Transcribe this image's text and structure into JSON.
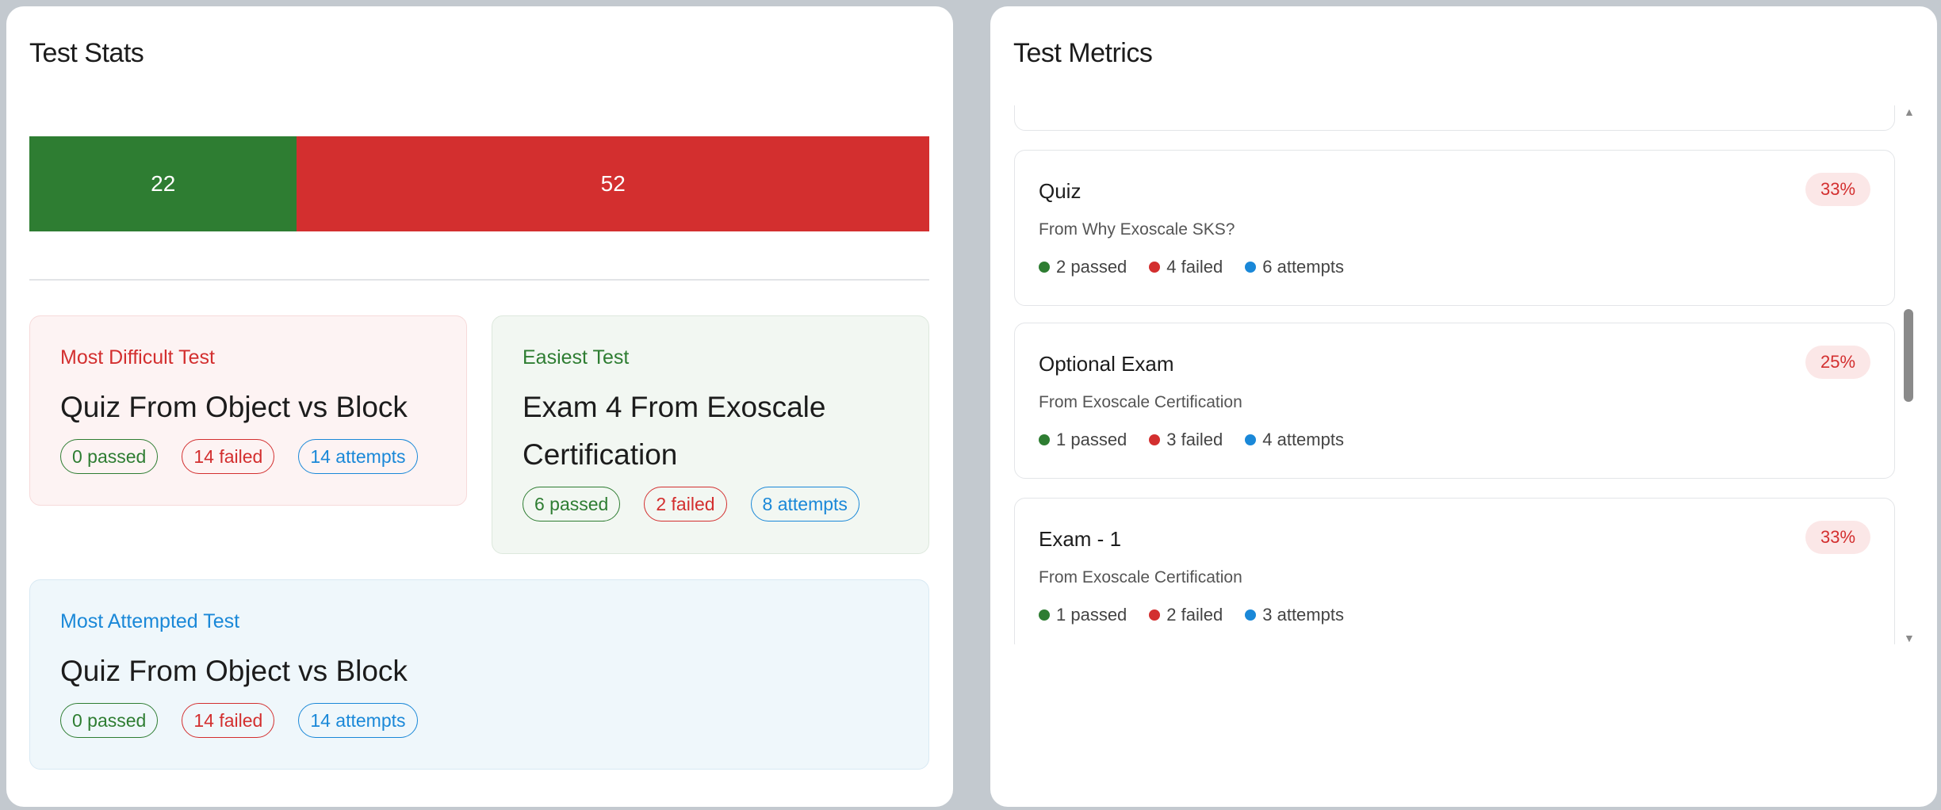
{
  "stats": {
    "title": "Test Stats",
    "bar": {
      "passed": 22,
      "failed": 52,
      "passed_color": "#2e7d32",
      "failed_color": "#d32f2f"
    },
    "cards": [
      {
        "label": "Most Difficult Test",
        "title": "Quiz From Object vs Block",
        "passed": "0 passed",
        "failed": "14 failed",
        "attempts": "14 attempts"
      },
      {
        "label": "Easiest Test",
        "title": "Exam 4 From Exoscale Certification",
        "passed": "6 passed",
        "failed": "2 failed",
        "attempts": "8 attempts"
      },
      {
        "label": "Most Attempted Test",
        "title": "Quiz From Object vs Block",
        "passed": "0 passed",
        "failed": "14 failed",
        "attempts": "14 attempts"
      }
    ]
  },
  "metrics": {
    "title": "Test Metrics",
    "items": [
      {
        "title": "Quiz",
        "source": "From Why Exoscale SKS?",
        "rate": "33%",
        "passed": "2 passed",
        "failed": "4 failed",
        "attempts": "6 attempts"
      },
      {
        "title": "Optional Exam",
        "source": "From Exoscale Certification",
        "rate": "25%",
        "passed": "1 passed",
        "failed": "3 failed",
        "attempts": "4 attempts"
      },
      {
        "title": "Exam - 1",
        "source": "From Exoscale Certification",
        "rate": "33%",
        "passed": "1 passed",
        "failed": "2 failed",
        "attempts": "3 attempts"
      }
    ]
  },
  "colors": {
    "passed": "#2e7d32",
    "failed": "#d32f2f",
    "attempts": "#1a88d8"
  }
}
